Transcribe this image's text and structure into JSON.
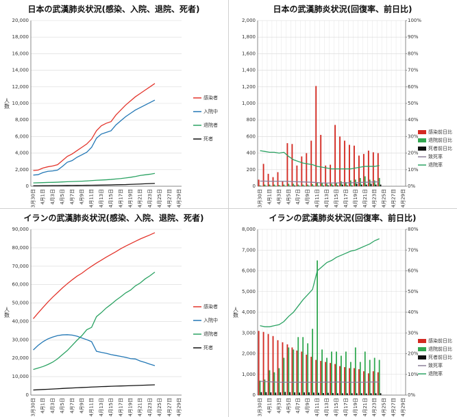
{
  "chart_data": [
    {
      "type": "line",
      "title": "日本の武漢肺炎状況(感染、入院、退院、死者)",
      "ylabel": "人数",
      "categories": [
        "3月30日",
        null,
        "4月1日",
        null,
        "4月3日",
        null,
        "4月5日",
        null,
        "4月7日",
        null,
        "4月9日",
        null,
        "4月11日",
        null,
        "4月13日",
        null,
        "4月15日",
        null,
        "4月17日",
        null,
        "4月19日",
        null,
        "4月21日",
        null,
        "4月23日",
        null,
        "4月25日",
        null,
        "4月27日",
        null,
        "4月29日"
      ],
      "ylim": [
        0,
        20000
      ],
      "yticks": [
        0,
        {
          "value": 2000,
          "label": "2,000"
        },
        {
          "value": 4000,
          "label": "4,000"
        },
        {
          "value": 6000,
          "label": "6,000"
        },
        {
          "value": 8000,
          "label": "8,000"
        },
        {
          "value": 10000,
          "label": "10,000"
        },
        {
          "value": 12000,
          "label": "12,000"
        },
        {
          "value": 14000,
          "label": "14,000"
        },
        {
          "value": 16000,
          "label": "16,000"
        },
        {
          "value": 18000,
          "label": "18,000"
        },
        {
          "value": 20000,
          "label": "20,000"
        }
      ],
      "grid": true,
      "series": [
        {
          "name": "感染者",
          "color": "#e3342b",
          "values": [
            1900,
            1950,
            2200,
            2350,
            2450,
            2600,
            3100,
            3600,
            3900,
            4300,
            4700,
            5100,
            5700,
            6700,
            7300,
            7600,
            7800,
            8600,
            9200,
            9800,
            10300,
            10800,
            11200,
            11600,
            12000,
            12400,
            null,
            null,
            null,
            null,
            null
          ]
        },
        {
          "name": "入院中",
          "color": "#2277b5",
          "values": [
            1350,
            1400,
            1650,
            1800,
            1850,
            1950,
            2400,
            2900,
            3100,
            3500,
            3800,
            4100,
            4700,
            5800,
            6300,
            6500,
            6700,
            7400,
            7900,
            8400,
            8800,
            9200,
            9500,
            9800,
            10100,
            10400,
            null,
            null,
            null,
            null,
            null
          ]
        },
        {
          "name": "退院者",
          "color": "#2aa262",
          "values": [
            400,
            420,
            440,
            460,
            470,
            490,
            520,
            550,
            570,
            590,
            610,
            640,
            680,
            720,
            750,
            780,
            820,
            880,
            930,
            1000,
            1080,
            1180,
            1300,
            1380,
            1450,
            1550,
            null,
            null,
            null,
            null,
            null
          ]
        },
        {
          "name": "死者",
          "color": "#111111",
          "values": [
            60,
            65,
            70,
            75,
            80,
            85,
            90,
            100,
            105,
            110,
            115,
            120,
            125,
            130,
            140,
            150,
            160,
            180,
            190,
            200,
            230,
            250,
            270,
            300,
            320,
            340,
            null,
            null,
            null,
            null,
            null
          ]
        }
      ]
    },
    {
      "type": "combo",
      "title": "日本の武漢肺炎状況(回復率、前日比)",
      "categories": [
        "3月30日",
        null,
        "4月1日",
        null,
        "4月3日",
        null,
        "4月5日",
        null,
        "4月7日",
        null,
        "4月9日",
        null,
        "4月11日",
        null,
        "4月13日",
        null,
        "4月15日",
        null,
        "4月17日",
        null,
        "4月19日",
        null,
        "4月21日",
        null,
        "4月23日",
        null,
        "4月25日",
        null,
        "4月27日",
        null,
        "4月29日"
      ],
      "ylim": [
        0,
        2000
      ],
      "yticks": [
        0,
        200,
        400,
        600,
        800,
        {
          "value": 1000,
          "label": "1,000"
        },
        {
          "value": 1200,
          "label": "1,200"
        },
        {
          "value": 1400,
          "label": "1,400"
        },
        {
          "value": 1600,
          "label": "1,600"
        },
        {
          "value": 1800,
          "label": "1,800"
        },
        {
          "value": 2000,
          "label": "2,000"
        }
      ],
      "y2lim": [
        0,
        100
      ],
      "y2ticks": [
        {
          "value": 0,
          "label": "0%"
        },
        {
          "value": 10,
          "label": "10%"
        },
        {
          "value": 20,
          "label": "20%"
        },
        {
          "value": 30,
          "label": "30%"
        },
        {
          "value": 40,
          "label": "40%"
        },
        {
          "value": 50,
          "label": "50%"
        },
        {
          "value": 60,
          "label": "60%"
        },
        {
          "value": 70,
          "label": "70%"
        },
        {
          "value": 80,
          "label": "80%"
        },
        {
          "value": 90,
          "label": "90%"
        },
        {
          "value": 100,
          "label": "100%"
        }
      ],
      "grid": true,
      "xgrid": true,
      "series": [
        {
          "name": "感染前日比",
          "type": "bar",
          "color": "#d42a22",
          "values": [
            80,
            270,
            150,
            110,
            170,
            60,
            520,
            510,
            250,
            360,
            400,
            550,
            1210,
            620,
            250,
            260,
            740,
            600,
            550,
            500,
            490,
            370,
            390,
            430,
            410,
            400,
            null,
            null,
            null,
            null,
            null
          ]
        },
        {
          "name": "退院前日比",
          "type": "bar",
          "color": "#33a852",
          "values": [
            10,
            20,
            20,
            20,
            15,
            20,
            30,
            30,
            20,
            20,
            20,
            25,
            40,
            40,
            30,
            30,
            40,
            60,
            50,
            70,
            80,
            100,
            120,
            80,
            70,
            100,
            null,
            null,
            null,
            null,
            null
          ]
        },
        {
          "name": "死者前日比",
          "type": "bar",
          "color": "#111111",
          "values": [
            2,
            3,
            3,
            3,
            3,
            3,
            5,
            8,
            5,
            5,
            5,
            5,
            5,
            8,
            10,
            10,
            10,
            20,
            10,
            10,
            30,
            20,
            20,
            30,
            20,
            20,
            null,
            null,
            null,
            null,
            null
          ]
        },
        {
          "name": "致死率",
          "type": "line",
          "axis": "y2",
          "color": "#8a7f99",
          "values": [
            3.1,
            3.1,
            3,
            3,
            3,
            3,
            2.9,
            2.8,
            2.7,
            2.6,
            2.5,
            2.4,
            2.2,
            2,
            1.9,
            2,
            2,
            2.1,
            2.1,
            2.1,
            2.2,
            2.3,
            2.4,
            2.5,
            2.6,
            2.7,
            null,
            null,
            null,
            null,
            null
          ]
        },
        {
          "name": "退院率",
          "type": "line",
          "axis": "y2",
          "color": "#2aa262",
          "values": [
            21.5,
            21,
            20.5,
            20.5,
            20,
            20.5,
            18,
            16,
            15,
            14,
            13.5,
            13,
            12,
            11.5,
            11,
            10.5,
            10.5,
            10.5,
            10.5,
            10.5,
            11,
            11.5,
            12,
            12,
            12,
            12.5,
            null,
            null,
            null,
            null,
            null
          ]
        }
      ]
    },
    {
      "type": "line",
      "title": "イランの武漢肺炎状況(感染、入院、退院、死者)",
      "ylabel": "人数",
      "categories": [
        "3月30日",
        null,
        "4月1日",
        null,
        "4月3日",
        null,
        "4月5日",
        null,
        "4月7日",
        null,
        "4月9日",
        null,
        "4月11日",
        null,
        "4月13日",
        null,
        "4月15日",
        null,
        "4月17日",
        null,
        "4月19日",
        null,
        "4月21日",
        null,
        "4月23日",
        null,
        "4月25日",
        null,
        "4月27日",
        null,
        "4月29日"
      ],
      "ylim": [
        0,
        90000
      ],
      "yticks": [
        0,
        {
          "value": 10000,
          "label": "10,000"
        },
        {
          "value": 20000,
          "label": "20,000"
        },
        {
          "value": 30000,
          "label": "30,000"
        },
        {
          "value": 40000,
          "label": "40,000"
        },
        {
          "value": 50000,
          "label": "50,000"
        },
        {
          "value": 60000,
          "label": "60,000"
        },
        {
          "value": 70000,
          "label": "70,000"
        },
        {
          "value": 80000,
          "label": "80,000"
        },
        {
          "value": 90000,
          "label": "90,000"
        }
      ],
      "grid": true,
      "series": [
        {
          "name": "感染者",
          "color": "#e3342b",
          "values": [
            41500,
            44600,
            47600,
            50500,
            53200,
            55700,
            58200,
            60500,
            62600,
            64600,
            66200,
            68200,
            70000,
            71700,
            73300,
            74900,
            76400,
            77900,
            79500,
            80900,
            82200,
            83500,
            84800,
            85900,
            87000,
            88200,
            null,
            null,
            null,
            null,
            null
          ]
        },
        {
          "name": "入院中",
          "color": "#2277b5",
          "values": [
            24500,
            27000,
            29000,
            30500,
            31500,
            32300,
            32700,
            32800,
            32600,
            32000,
            31000,
            30100,
            29000,
            23800,
            23200,
            22700,
            22000,
            21500,
            21000,
            20500,
            19800,
            19600,
            18500,
            17700,
            16800,
            16000,
            null,
            null,
            null,
            null,
            null
          ]
        },
        {
          "name": "退院者",
          "color": "#2aa262",
          "values": [
            13900,
            14700,
            15500,
            16600,
            17900,
            19700,
            22000,
            24200,
            27000,
            29800,
            32300,
            35500,
            36800,
            42600,
            44800,
            47300,
            49300,
            51500,
            53400,
            55500,
            57000,
            59300,
            60900,
            63100,
            64800,
            66800,
            null,
            null,
            null,
            null,
            null
          ]
        },
        {
          "name": "死者",
          "color": "#111111",
          "values": [
            2760,
            2900,
            3040,
            3160,
            3290,
            3450,
            3600,
            3740,
            3870,
            3990,
            4110,
            4230,
            4360,
            4470,
            4590,
            4680,
            4780,
            4870,
            4960,
            5030,
            5120,
            5210,
            5300,
            5390,
            5480,
            5580,
            null,
            null,
            null,
            null,
            null
          ]
        }
      ]
    },
    {
      "type": "combo",
      "title": "イランの武漢肺炎状況(回復率、前日比)",
      "ylabel": "人数",
      "categories": [
        "3月30日",
        null,
        "4月1日",
        null,
        "4月3日",
        null,
        "4月5日",
        null,
        "4月7日",
        null,
        "4月9日",
        null,
        "4月11日",
        null,
        "4月13日",
        null,
        "4月15日",
        null,
        "4月17日",
        null,
        "4月19日",
        null,
        "4月21日",
        null,
        "4月23日",
        null,
        "4月25日",
        null,
        "4月27日",
        null,
        "4月29日"
      ],
      "ylim": [
        0,
        8000
      ],
      "yticks": [
        0,
        {
          "value": 1000,
          "label": "1,000"
        },
        {
          "value": 2000,
          "label": "2,000"
        },
        {
          "value": 3000,
          "label": "3,000"
        },
        {
          "value": 4000,
          "label": "4,000"
        },
        {
          "value": 5000,
          "label": "5,000"
        },
        {
          "value": 6000,
          "label": "6,000"
        },
        {
          "value": 7000,
          "label": "7,000"
        },
        {
          "value": 8000,
          "label": "8,000"
        }
      ],
      "y2lim": [
        0,
        80
      ],
      "y2ticks": [
        {
          "value": 0,
          "label": "0%"
        },
        {
          "value": 10,
          "label": "10%"
        },
        {
          "value": 20,
          "label": "20%"
        },
        {
          "value": 30,
          "label": "30%"
        },
        {
          "value": 40,
          "label": "40%"
        },
        {
          "value": 50,
          "label": "50%"
        },
        {
          "value": 60,
          "label": "60%"
        },
        {
          "value": 70,
          "label": "70%"
        },
        {
          "value": 80,
          "label": "80%"
        }
      ],
      "grid": true,
      "xgrid": true,
      "series": [
        {
          "name": "感染前日比",
          "type": "bar",
          "color": "#d42a22",
          "values": [
            3100,
            3050,
            2950,
            2850,
            2650,
            2550,
            2450,
            2300,
            2150,
            2100,
            1950,
            1850,
            1700,
            1650,
            1600,
            1550,
            1500,
            1400,
            1350,
            1300,
            1300,
            1250,
            1150,
            1050,
            1150,
            1100,
            null,
            null,
            null,
            null,
            null
          ]
        },
        {
          "name": "退院前日比",
          "type": "bar",
          "color": "#33a852",
          "values": [
            700,
            750,
            1200,
            1100,
            1300,
            1800,
            2300,
            2200,
            2800,
            2800,
            2500,
            3200,
            6500,
            2200,
            1800,
            2100,
            2100,
            1900,
            2100,
            1600,
            2300,
            1600,
            2100,
            1700,
            1800,
            1700,
            null,
            null,
            null,
            null,
            null
          ]
        },
        {
          "name": "死者前日比",
          "type": "bar",
          "color": "#111111",
          "values": [
            140,
            140,
            130,
            120,
            130,
            150,
            140,
            130,
            120,
            130,
            130,
            120,
            110,
            100,
            110,
            100,
            90,
            90,
            90,
            90,
            90,
            90,
            80,
            90,
            90,
            90,
            null,
            null,
            null,
            null,
            null
          ]
        },
        {
          "name": "致死率",
          "type": "line",
          "axis": "y2",
          "color": "#8a7f99",
          "values": [
            6.7,
            6.5,
            6.4,
            6.3,
            6.2,
            6.2,
            6.2,
            6.2,
            6.2,
            6.2,
            6.2,
            6.2,
            6.2,
            6.2,
            6.3,
            6.2,
            6.3,
            6.3,
            6.2,
            6.2,
            6.2,
            6.2,
            6.2,
            6.3,
            6.3,
            6.3,
            null,
            null,
            null,
            null,
            null
          ]
        },
        {
          "name": "退院率",
          "type": "line",
          "axis": "y2",
          "color": "#2aa262",
          "values": [
            33.5,
            33,
            33,
            33.5,
            34,
            35.5,
            38,
            40,
            43,
            46,
            48.5,
            51,
            60,
            62,
            64,
            65,
            66.5,
            67.5,
            68.5,
            69.5,
            70,
            71,
            72,
            73,
            74.5,
            75.5,
            null,
            null,
            null,
            null,
            null
          ]
        }
      ]
    }
  ]
}
